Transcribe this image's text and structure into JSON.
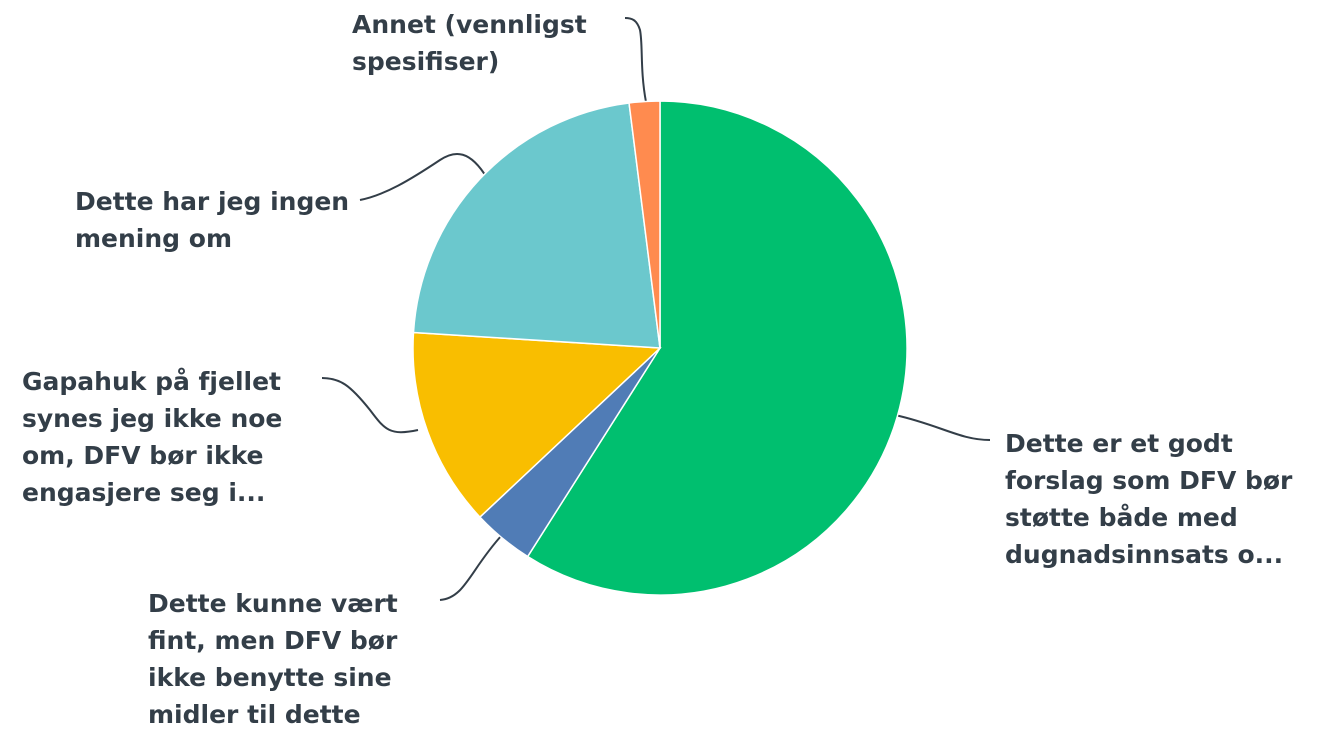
{
  "chart_data": {
    "type": "pie",
    "categories": [
      "Dette er et godt forslag som DFV bør støtte både med dugnadsinnsats o...",
      "Dette kunne vært fint, men DFV bør ikke benytte sine midler til dette",
      "Gapahuk på fjellet synes jeg ikke noe om, DFV bør ikke engasjere seg i...",
      "Dette har jeg ingen mening om",
      "Annet (vennligst spesifiser)"
    ],
    "values": [
      59,
      4,
      13,
      22,
      2
    ],
    "colors": [
      "#00bf6f",
      "#507cb6",
      "#f9be00",
      "#6bc8cd",
      "#ff8b4f"
    ]
  }
}
